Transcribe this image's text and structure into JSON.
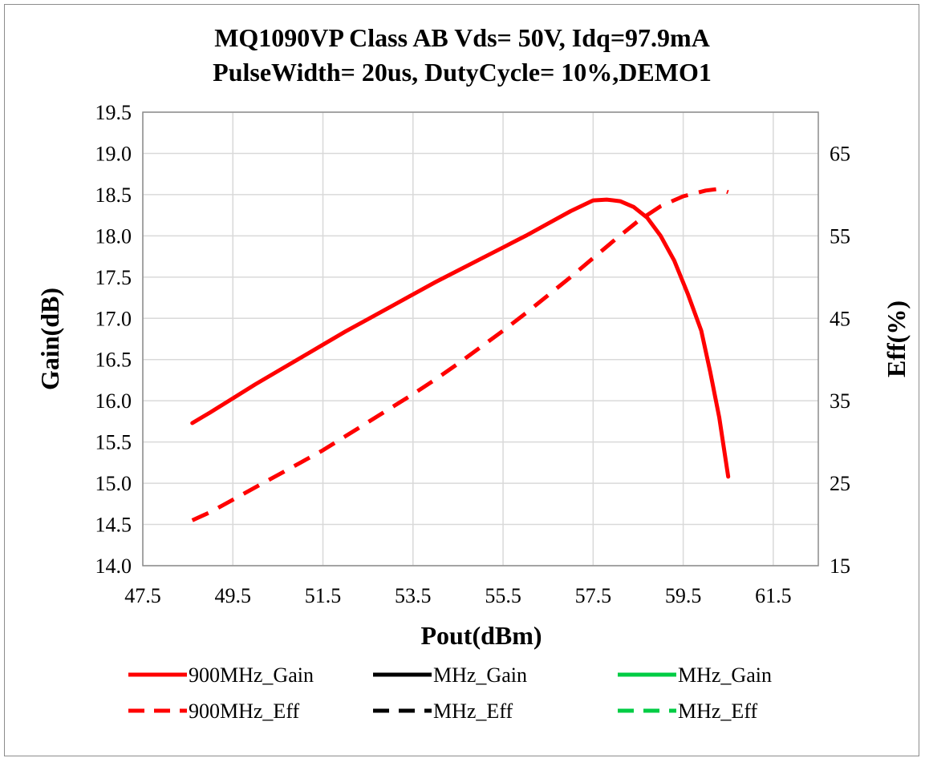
{
  "chart_data": {
    "type": "line",
    "title_line1": "MQ1090VP Class AB Vds= 50V, Idq=97.9mA",
    "title_line2": "PulseWidth= 20us, DutyCycle= 10%,DEMO1",
    "xlabel": "Pout(dBm)",
    "ylabel": "Gain(dB)",
    "y2label": "Eff(%)",
    "xlim": [
      47.5,
      62.5
    ],
    "ylim": [
      14.0,
      19.5
    ],
    "y2lim": [
      15,
      70
    ],
    "x_ticks": [
      "47.5",
      "49.5",
      "51.5",
      "53.5",
      "55.5",
      "57.5",
      "59.5",
      "61.5"
    ],
    "y_ticks": [
      "14.0",
      "14.5",
      "15.0",
      "15.5",
      "16.0",
      "16.5",
      "17.0",
      "17.5",
      "18.0",
      "18.5",
      "19.0",
      "19.5"
    ],
    "y2_ticks": [
      "15",
      "25",
      "35",
      "45",
      "55",
      "65"
    ],
    "grid": true,
    "legend_position": "bottom",
    "series": [
      {
        "name": "900MHz_Gain",
        "axis": "left",
        "color": "#ff0000",
        "dash": "solid",
        "x": [
          48.6,
          49.0,
          49.5,
          50.0,
          50.5,
          51.0,
          51.5,
          52.0,
          52.5,
          53.0,
          53.5,
          54.0,
          54.5,
          55.0,
          55.5,
          56.0,
          56.5,
          57.0,
          57.5,
          57.8,
          58.1,
          58.4,
          58.7,
          59.0,
          59.3,
          59.6,
          59.9,
          60.1,
          60.3,
          60.5
        ],
        "y": [
          15.73,
          15.86,
          16.03,
          16.2,
          16.36,
          16.52,
          16.68,
          16.84,
          16.99,
          17.14,
          17.29,
          17.44,
          17.58,
          17.72,
          17.86,
          18.0,
          18.15,
          18.3,
          18.43,
          18.44,
          18.42,
          18.35,
          18.22,
          18.0,
          17.7,
          17.3,
          16.85,
          16.35,
          15.8,
          15.08
        ]
      },
      {
        "name": "900MHz_Eff",
        "axis": "right",
        "color": "#ff0000",
        "dash": "dashed",
        "x": [
          48.6,
          49.0,
          49.5,
          50.0,
          50.5,
          51.0,
          51.5,
          52.0,
          52.5,
          53.0,
          53.5,
          54.0,
          54.5,
          55.0,
          55.5,
          56.0,
          56.5,
          57.0,
          57.5,
          58.0,
          58.5,
          59.0,
          59.5,
          60.0,
          60.3,
          60.5
        ],
        "y": [
          20.5,
          21.5,
          23.0,
          24.5,
          26.0,
          27.5,
          29.0,
          30.7,
          32.4,
          34.1,
          35.8,
          37.6,
          39.5,
          41.5,
          43.5,
          45.6,
          47.8,
          50.0,
          52.3,
          54.6,
          56.8,
          58.6,
          59.8,
          60.5,
          60.7,
          60.3
        ]
      },
      {
        "name": "MHz_Gain",
        "axis": "left",
        "color": "#000000",
        "dash": "solid",
        "x": [],
        "y": []
      },
      {
        "name": "MHz_Gain",
        "axis": "left",
        "color": "#00cc44",
        "dash": "solid",
        "x": [],
        "y": []
      },
      {
        "name": "MHz_Eff",
        "axis": "right",
        "color": "#000000",
        "dash": "dashed",
        "x": [],
        "y": []
      },
      {
        "name": "MHz_Eff",
        "axis": "right",
        "color": "#00cc44",
        "dash": "dashed",
        "x": [],
        "y": []
      }
    ]
  }
}
